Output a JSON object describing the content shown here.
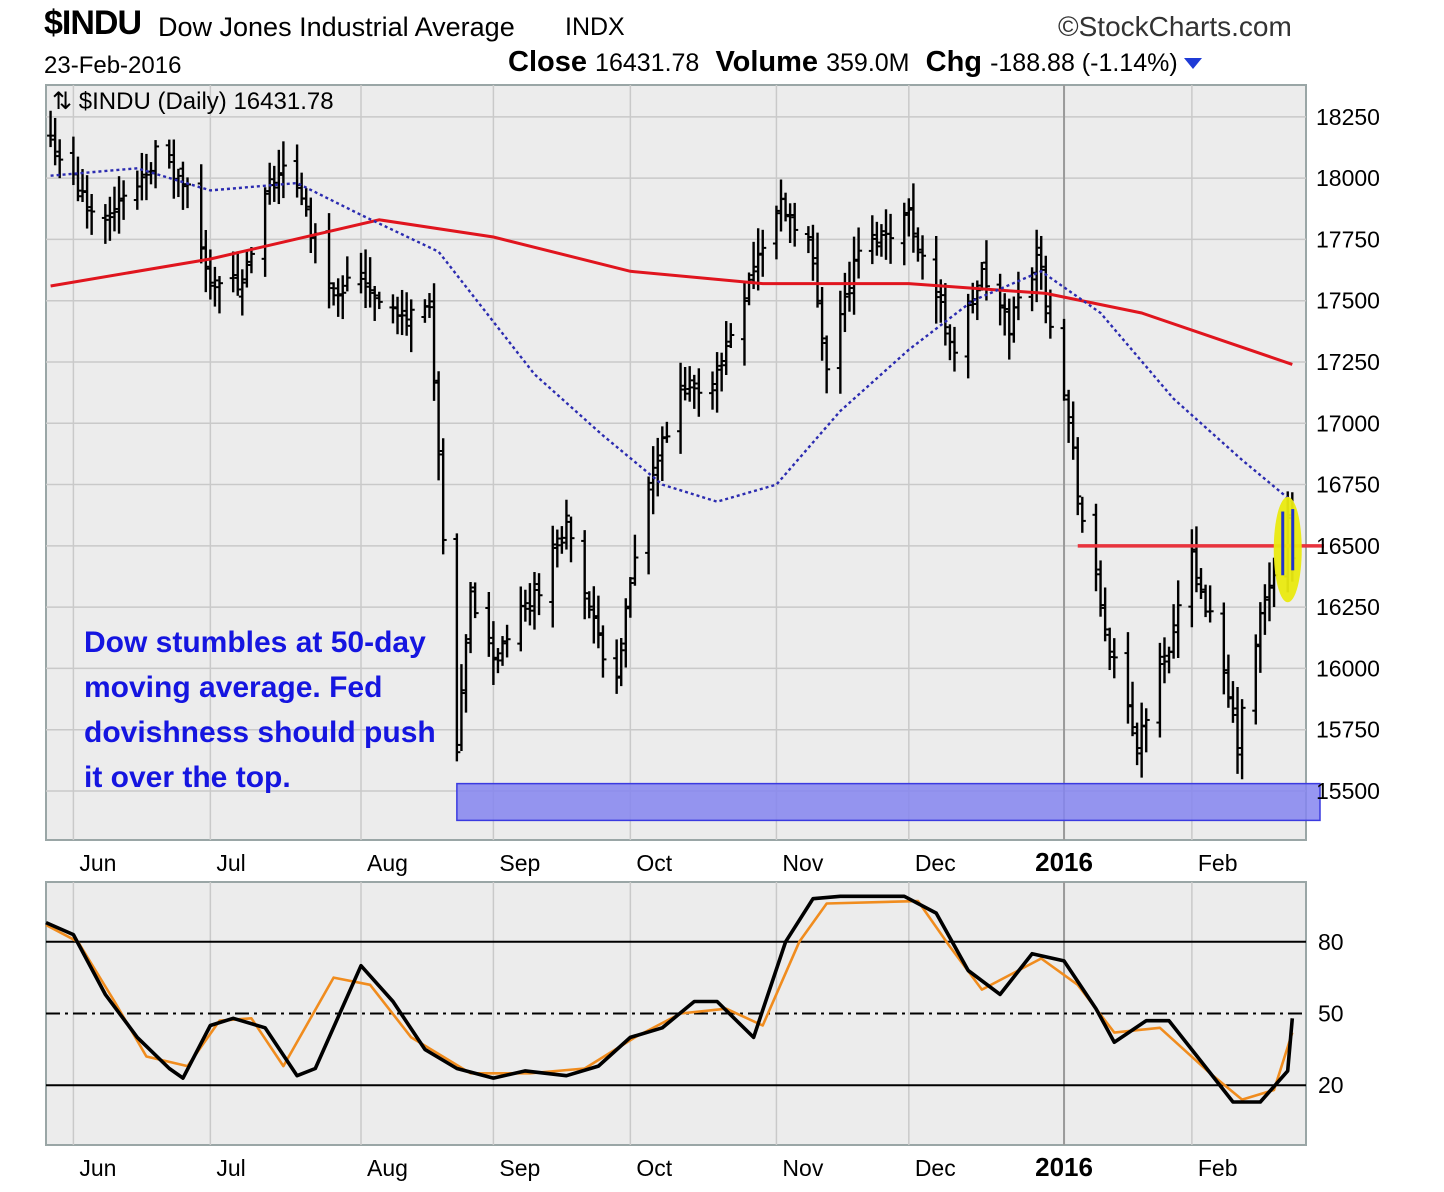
{
  "header": {
    "symbol": "$INDU",
    "name": "Dow Jones Industrial Average",
    "exchange": "INDX",
    "brand": "©StockCharts.com",
    "date": "23-Feb-2016",
    "close_label": "Close",
    "close_value": "16431.78",
    "volume_label": "Volume",
    "volume_value": "359.0M",
    "chg_label": "Chg",
    "chg_value": "-188.88 (-1.14%)"
  },
  "legend": "⇅ $INDU (Daily) 16431.78",
  "annotation_lines": [
    "Dow stumbles at 50-day",
    "moving average. Fed",
    "dovishness should push",
    "it over the top."
  ],
  "colors": {
    "panel_bg": "#ececec",
    "grid": "#c9c9c9",
    "sma200": "#e0151e",
    "sma50": "#2b2bb0",
    "support_zone": "#8585f0",
    "resistance": "#e8333d",
    "highlight": "#eaea10",
    "fast_line": "#000000",
    "slow_line": "#f08c1e"
  },
  "chart_data": [
    {
      "type": "ohlc",
      "title": "$INDU (Daily) 16431.78",
      "x_tick_labels": [
        "Jun",
        "Jul",
        "Aug",
        "Sep",
        "Oct",
        "Nov",
        "Dec",
        "2016",
        "Feb"
      ],
      "y_ticks": [
        15500,
        15750,
        16000,
        16250,
        16500,
        16750,
        17000,
        17250,
        17500,
        17750,
        18000,
        18250
      ],
      "ylim": [
        15300,
        18380
      ],
      "xlim": [
        "2015-05-26",
        "2016-02-26"
      ],
      "x_tick_dates": [
        "2015-06-01",
        "2015-07-01",
        "2015-08-03",
        "2015-09-01",
        "2015-10-01",
        "2015-11-02",
        "2015-12-01",
        "2016-01-04",
        "2016-02-01"
      ],
      "close_path": [
        [
          "2015-05-27",
          18160
        ],
        [
          "2015-06-05",
          17850
        ],
        [
          "2015-06-12",
          17900
        ],
        [
          "2015-06-19",
          18100
        ],
        [
          "2015-06-26",
          17950
        ],
        [
          "2015-06-30",
          17620
        ],
        [
          "2015-07-08",
          17550
        ],
        [
          "2015-07-13",
          17900
        ],
        [
          "2015-07-17",
          18080
        ],
        [
          "2015-07-22",
          17850
        ],
        [
          "2015-07-28",
          17550
        ],
        [
          "2015-08-03",
          17600
        ],
        [
          "2015-08-12",
          17420
        ],
        [
          "2015-08-18",
          17500
        ],
        [
          "2015-08-21",
          16500
        ],
        [
          "2015-08-24",
          15650
        ],
        [
          "2015-08-27",
          16300
        ],
        [
          "2015-09-01",
          16050
        ],
        [
          "2015-09-10",
          16300
        ],
        [
          "2015-09-17",
          16600
        ],
        [
          "2015-09-24",
          16100
        ],
        [
          "2015-09-28",
          16000
        ],
        [
          "2015-10-05",
          16750
        ],
        [
          "2015-10-12",
          17100
        ],
        [
          "2015-10-20",
          17200
        ],
        [
          "2015-10-27",
          17600
        ],
        [
          "2015-11-03",
          17900
        ],
        [
          "2015-11-09",
          17750
        ],
        [
          "2015-11-13",
          17250
        ],
        [
          "2015-11-20",
          17700
        ],
        [
          "2015-12-01",
          17850
        ],
        [
          "2015-12-11",
          17300
        ],
        [
          "2015-12-17",
          17600
        ],
        [
          "2015-12-23",
          17400
        ],
        [
          "2015-12-29",
          17700
        ],
        [
          "2016-01-04",
          17150
        ],
        [
          "2016-01-08",
          16600
        ],
        [
          "2016-01-15",
          16000
        ],
        [
          "2016-01-20",
          15700
        ],
        [
          "2016-01-27",
          16100
        ],
        [
          "2016-02-01",
          16450
        ],
        [
          "2016-02-05",
          16200
        ],
        [
          "2016-02-11",
          15700
        ],
        [
          "2016-02-16",
          16200
        ],
        [
          "2016-02-22",
          16600
        ],
        [
          "2016-02-23",
          16431.78
        ]
      ],
      "sma50": [
        [
          "2015-05-27",
          18010
        ],
        [
          "2015-06-15",
          18040
        ],
        [
          "2015-07-01",
          17950
        ],
        [
          "2015-07-20",
          17980
        ],
        [
          "2015-08-03",
          17850
        ],
        [
          "2015-08-20",
          17700
        ],
        [
          "2015-09-10",
          17200
        ],
        [
          "2015-09-25",
          16950
        ],
        [
          "2015-10-08",
          16750
        ],
        [
          "2015-10-20",
          16680
        ],
        [
          "2015-11-02",
          16750
        ],
        [
          "2015-11-16",
          17050
        ],
        [
          "2015-12-01",
          17300
        ],
        [
          "2015-12-15",
          17500
        ],
        [
          "2015-12-30",
          17620
        ],
        [
          "2016-01-12",
          17450
        ],
        [
          "2016-01-28",
          17100
        ],
        [
          "2016-02-12",
          16850
        ],
        [
          "2016-02-23",
          16680
        ]
      ],
      "sma200": [
        [
          "2015-05-27",
          17560
        ],
        [
          "2015-07-01",
          17670
        ],
        [
          "2015-08-07",
          17830
        ],
        [
          "2015-09-01",
          17760
        ],
        [
          "2015-10-01",
          17620
        ],
        [
          "2015-10-30",
          17570
        ],
        [
          "2015-12-01",
          17570
        ],
        [
          "2015-12-31",
          17530
        ],
        [
          "2016-01-21",
          17450
        ],
        [
          "2016-02-23",
          17240
        ]
      ],
      "support_zone": {
        "from": "2015-08-24",
        "to": "2016-02-26",
        "low": 15380,
        "high": 15530
      },
      "resistance_level": {
        "from": "2016-01-07",
        "to": "2016-02-26",
        "value": 16500
      },
      "highlight": {
        "date": "2016-02-22",
        "low": 16270,
        "high": 16700
      },
      "grid": true
    },
    {
      "type": "line",
      "x_tick_labels": [
        "Jun",
        "Jul",
        "Aug",
        "Sep",
        "Oct",
        "Nov",
        "Dec",
        "2016",
        "Feb"
      ],
      "y_ticks": [
        20,
        50,
        80
      ],
      "ylim": [
        -5,
        105
      ],
      "reference_lines": [
        80,
        50,
        20
      ],
      "series": [
        {
          "role": "fast",
          "points": [
            [
              "2015-05-26",
              88
            ],
            [
              "2015-06-01",
              83
            ],
            [
              "2015-06-08",
              58
            ],
            [
              "2015-06-15",
              40
            ],
            [
              "2015-06-22",
              27
            ],
            [
              "2015-06-25",
              23
            ],
            [
              "2015-07-01",
              45
            ],
            [
              "2015-07-06",
              48
            ],
            [
              "2015-07-13",
              44
            ],
            [
              "2015-07-20",
              24
            ],
            [
              "2015-07-24",
              27
            ],
            [
              "2015-08-03",
              70
            ],
            [
              "2015-08-10",
              55
            ],
            [
              "2015-08-17",
              35
            ],
            [
              "2015-08-24",
              27
            ],
            [
              "2015-09-01",
              23
            ],
            [
              "2015-09-08",
              26
            ],
            [
              "2015-09-17",
              24
            ],
            [
              "2015-09-24",
              28
            ],
            [
              "2015-10-01",
              40
            ],
            [
              "2015-10-08",
              44
            ],
            [
              "2015-10-15",
              55
            ],
            [
              "2015-10-20",
              55
            ],
            [
              "2015-10-28",
              40
            ],
            [
              "2015-11-04",
              80
            ],
            [
              "2015-11-10",
              98
            ],
            [
              "2015-11-16",
              99
            ],
            [
              "2015-11-30",
              99
            ],
            [
              "2015-12-07",
              92
            ],
            [
              "2015-12-14",
              68
            ],
            [
              "2015-12-21",
              58
            ],
            [
              "2015-12-28",
              75
            ],
            [
              "2016-01-04",
              72
            ],
            [
              "2016-01-11",
              52
            ],
            [
              "2016-01-15",
              38
            ],
            [
              "2016-01-22",
              47
            ],
            [
              "2016-01-27",
              47
            ],
            [
              "2016-02-03",
              30
            ],
            [
              "2016-02-10",
              13
            ],
            [
              "2016-02-16",
              13
            ],
            [
              "2016-02-22",
              26
            ],
            [
              "2016-02-23",
              48
            ]
          ]
        },
        {
          "role": "slow",
          "points": [
            [
              "2015-05-26",
              87
            ],
            [
              "2015-06-02",
              80
            ],
            [
              "2015-06-10",
              55
            ],
            [
              "2015-06-17",
              32
            ],
            [
              "2015-06-26",
              28
            ],
            [
              "2015-07-03",
              47
            ],
            [
              "2015-07-10",
              48
            ],
            [
              "2015-07-17",
              28
            ],
            [
              "2015-07-28",
              65
            ],
            [
              "2015-08-05",
              62
            ],
            [
              "2015-08-14",
              40
            ],
            [
              "2015-08-27",
              25
            ],
            [
              "2015-09-09",
              25
            ],
            [
              "2015-09-21",
              27
            ],
            [
              "2015-10-02",
              40
            ],
            [
              "2015-10-12",
              50
            ],
            [
              "2015-10-22",
              52
            ],
            [
              "2015-10-30",
              45
            ],
            [
              "2015-11-07",
              80
            ],
            [
              "2015-11-13",
              96
            ],
            [
              "2015-12-03",
              97
            ],
            [
              "2015-12-10",
              78
            ],
            [
              "2015-12-17",
              60
            ],
            [
              "2015-12-30",
              73
            ],
            [
              "2016-01-07",
              62
            ],
            [
              "2016-01-15",
              42
            ],
            [
              "2016-01-25",
              44
            ],
            [
              "2016-02-05",
              25
            ],
            [
              "2016-02-12",
              14
            ],
            [
              "2016-02-19",
              18
            ],
            [
              "2016-02-23",
              42
            ]
          ]
        }
      ],
      "grid": true
    }
  ]
}
